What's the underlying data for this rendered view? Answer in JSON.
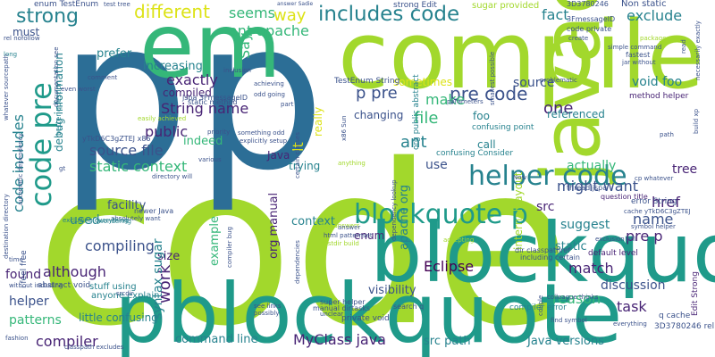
{
  "colors": {
    "background": "#ffffff",
    "palette": {
      "lime": "#a2d82c",
      "teal": "#1f9a8a",
      "green": "#35b779",
      "blue": "#2c6e96",
      "navy": "#3b528b",
      "purple": "#482475",
      "darkpurple": "#440154",
      "yellow": "#dde318",
      "cyan": "#26828e"
    }
  },
  "words": [
    {
      "text": "code",
      "color": "lime"
    },
    {
      "text": "compile",
      "color": "lime"
    },
    {
      "text": "p",
      "color": "blue"
    },
    {
      "text": "p",
      "color": "blue"
    },
    {
      "text": "blockquote",
      "color": "teal"
    },
    {
      "text": "pblockquote",
      "color": "teal"
    },
    {
      "text": "em",
      "color": "green"
    },
    {
      "text": "javac",
      "color": "lime"
    },
    {
      "text": "code pre",
      "color": "teal"
    },
    {
      "text": "includes code",
      "color": "cyan"
    },
    {
      "text": "strong",
      "color": "cyan"
    },
    {
      "text": "blockquote p",
      "color": "teal"
    },
    {
      "text": "helper code",
      "color": "cyan"
    },
    {
      "text": "different",
      "color": "yellow"
    },
    {
      "text": "seems",
      "color": "green"
    },
    {
      "text": "way",
      "color": "yellow"
    },
    {
      "text": "fact",
      "color": "cyan"
    },
    {
      "text": "exclude",
      "color": "cyan"
    },
    {
      "text": "ant apache",
      "color": "green"
    },
    {
      "text": "Say",
      "color": "green"
    },
    {
      "text": "prefer",
      "color": "cyan"
    },
    {
      "text": "increasing",
      "color": "cyan"
    },
    {
      "text": "exactly",
      "color": "purple"
    },
    {
      "text": "String name",
      "color": "purple"
    },
    {
      "text": "compiled",
      "color": "purple"
    },
    {
      "text": "p pre",
      "color": "navy"
    },
    {
      "text": "pre code",
      "color": "navy"
    },
    {
      "text": "one",
      "color": "purple"
    },
    {
      "text": "source",
      "color": "navy"
    },
    {
      "text": "void foo",
      "color": "cyan"
    },
    {
      "text": "make",
      "color": "green"
    },
    {
      "text": "file",
      "color": "green"
    },
    {
      "text": "changing",
      "color": "navy"
    },
    {
      "text": "foo",
      "color": "cyan"
    },
    {
      "text": "referenced",
      "color": "cyan"
    },
    {
      "text": "code includes",
      "color": "cyan"
    },
    {
      "text": "debug information",
      "color": "cyan"
    },
    {
      "text": "public",
      "color": "purple"
    },
    {
      "text": "indeed",
      "color": "green"
    },
    {
      "text": "source file",
      "color": "navy"
    },
    {
      "text": "static context",
      "color": "green"
    },
    {
      "text": "Java",
      "color": "purple"
    },
    {
      "text": "trying",
      "color": "cyan"
    },
    {
      "text": "ant",
      "color": "cyan"
    },
    {
      "text": "call",
      "color": "cyan"
    },
    {
      "text": "use",
      "color": "navy"
    },
    {
      "text": "actually",
      "color": "green"
    },
    {
      "text": "tree",
      "color": "purple"
    },
    {
      "text": "href",
      "color": "purple"
    },
    {
      "text": "might want",
      "color": "navy"
    },
    {
      "text": "src",
      "color": "purple"
    },
    {
      "text": "name",
      "color": "navy"
    },
    {
      "text": "suggest",
      "color": "cyan"
    },
    {
      "text": "facility",
      "color": "navy"
    },
    {
      "text": "used",
      "color": "cyan"
    },
    {
      "text": "compiling",
      "color": "navy"
    },
    {
      "text": "size",
      "color": "purple"
    },
    {
      "text": "example",
      "color": "green"
    },
    {
      "text": "org manual",
      "color": "purple"
    },
    {
      "text": "context",
      "color": "cyan"
    },
    {
      "text": "apache org",
      "color": "cyan"
    },
    {
      "text": "Eclipse",
      "color": "darkpurple"
    },
    {
      "text": "pre p",
      "color": "purple"
    },
    {
      "text": "found",
      "color": "purple"
    },
    {
      "text": "helper",
      "color": "navy"
    },
    {
      "text": "although",
      "color": "purple"
    },
    {
      "text": "patterns",
      "color": "green"
    },
    {
      "text": "compiler",
      "color": "purple"
    },
    {
      "text": "work",
      "color": "purple"
    },
    {
      "text": "syntax sugar",
      "color": "cyan"
    },
    {
      "text": "visibility",
      "color": "navy"
    },
    {
      "text": "match",
      "color": "purple"
    },
    {
      "text": "reason",
      "color": "green"
    },
    {
      "text": "discussion",
      "color": "navy"
    },
    {
      "text": "task",
      "color": "purple"
    },
    {
      "text": "command line",
      "color": "cyan"
    },
    {
      "text": "MyClass java",
      "color": "purple"
    },
    {
      "text": "src path",
      "color": "cyan"
    },
    {
      "text": "Java versions",
      "color": "cyan"
    },
    {
      "text": "must",
      "color": "navy"
    },
    {
      "text": "enum",
      "color": "purple"
    },
    {
      "text": "static",
      "color": "cyan"
    },
    {
      "text": "little confusing",
      "color": "cyan"
    },
    {
      "text": "stuff using",
      "color": "cyan"
    },
    {
      "text": "anyone explain",
      "color": "cyan"
    },
    {
      "text": "sometimes",
      "color": "yellow"
    },
    {
      "text": "really",
      "color": "yellow"
    },
    {
      "text": "lt",
      "color": "yellow"
    },
    {
      "text": "internal layout",
      "color": "lime"
    },
    {
      "text": "enum TestEnum",
      "color": "navy"
    },
    {
      "text": "test tree",
      "color": "navy"
    },
    {
      "text": "strong Edit",
      "color": "navy"
    },
    {
      "text": "sugar provided",
      "color": "lime"
    },
    {
      "text": "3D3780246",
      "color": "navy"
    },
    {
      "text": "Non static",
      "color": "navy"
    },
    {
      "text": "TestEnum String",
      "color": "navy"
    },
    {
      "text": "static method",
      "color": "navy"
    },
    {
      "text": "confusing point",
      "color": "cyan"
    },
    {
      "text": "confusing Consider",
      "color": "cyan"
    },
    {
      "text": "org public abstract",
      "color": "cyan"
    },
    {
      "text": "thread jspa",
      "color": "navy"
    },
    {
      "text": "error String",
      "color": "navy"
    },
    {
      "text": "cache yTkD6C3gZTEJ",
      "color": "navy"
    },
    {
      "text": "default level",
      "color": "purple"
    },
    {
      "text": "method helper",
      "color": "purple"
    },
    {
      "text": "Edit Strong",
      "color": "purple"
    },
    {
      "text": "q cache",
      "color": "navy"
    },
    {
      "text": "3D3780246 rel",
      "color": "navy"
    },
    {
      "text": "abstract void",
      "color": "navy"
    },
    {
      "text": "i feel free",
      "color": "navy"
    },
    {
      "text": "private void",
      "color": "navy"
    },
    {
      "text": "search q",
      "color": "navy"
    },
    {
      "text": "compiler error",
      "color": "cyan"
    },
    {
      "text": "super helper",
      "color": "navy"
    },
    {
      "text": "dir classpathref",
      "color": "navy"
    },
    {
      "text": "including certain",
      "color": "navy"
    },
    {
      "text": "jspa 3FmessageID",
      "color": "navy"
    },
    {
      "text": "yTkD6C3gZTEJ x86",
      "color": "navy"
    },
    {
      "text": "3FmessageID",
      "color": "navy"
    },
    {
      "text": "code private",
      "color": "navy"
    },
    {
      "text": "fastest",
      "color": "navy"
    },
    {
      "text": "jar without",
      "color": "navy"
    },
    {
      "text": "simple command",
      "color": "navy"
    },
    {
      "text": "create",
      "color": "navy"
    },
    {
      "text": "answer Sadie",
      "color": "navy"
    },
    {
      "text": "rel nofollow",
      "color": "navy"
    },
    {
      "text": "something odd",
      "color": "navy"
    },
    {
      "text": "explicitly setup",
      "color": "navy"
    },
    {
      "text": "odd going",
      "color": "navy"
    },
    {
      "text": "achieving",
      "color": "navy"
    },
    {
      "text": "even worst",
      "color": "navy"
    },
    {
      "text": "comment",
      "color": "navy"
    },
    {
      "text": "directory will",
      "color": "navy"
    },
    {
      "text": "newer Java",
      "color": "navy"
    },
    {
      "text": "absolutely want",
      "color": "navy"
    },
    {
      "text": "wondering",
      "color": "cyan"
    },
    {
      "text": "excluding everything",
      "color": "cyan"
    },
    {
      "text": "without including",
      "color": "navy"
    },
    {
      "text": "time",
      "color": "navy"
    },
    {
      "text": "real answers",
      "color": "lime"
    },
    {
      "text": "accepting",
      "color": "lime"
    },
    {
      "text": "answer",
      "color": "navy"
    },
    {
      "text": "html patternset",
      "color": "navy"
    },
    {
      "text": "manual dirtasks",
      "color": "navy"
    },
    {
      "text": "unclear",
      "color": "navy"
    },
    {
      "text": "see links",
      "color": "navy"
    },
    {
      "text": "possibly",
      "color": "navy"
    },
    {
      "text": "colleague thinks",
      "color": "navy"
    },
    {
      "text": "find symbol",
      "color": "navy"
    },
    {
      "text": "question title",
      "color": "purple"
    },
    {
      "text": "symbol helper",
      "color": "navy"
    },
    {
      "text": "cp whatever",
      "color": "navy"
    },
    {
      "text": "exclusion",
      "color": "navy"
    },
    {
      "text": "will",
      "color": "navy"
    },
    {
      "text": "everything",
      "color": "navy"
    },
    {
      "text": "couple",
      "color": "navy"
    },
    {
      "text": "anything",
      "color": "lime"
    },
    {
      "text": "various",
      "color": "navy"
    },
    {
      "text": "gt",
      "color": "navy"
    },
    {
      "text": "part",
      "color": "navy"
    },
    {
      "text": "inclusion",
      "color": "navy"
    },
    {
      "text": "priority",
      "color": "navy"
    },
    {
      "text": "better question",
      "color": "cyan"
    },
    {
      "text": "easily achieved",
      "color": "lime"
    },
    {
      "text": "parameters",
      "color": "navy"
    },
    {
      "text": "problematic",
      "color": "navy"
    },
    {
      "text": "long",
      "color": "cyan"
    },
    {
      "text": "path",
      "color": "navy"
    },
    {
      "text": "build xp",
      "color": "navy"
    },
    {
      "text": "read",
      "color": "navy"
    },
    {
      "text": "Now",
      "color": "navy"
    },
    {
      "text": "destdir build",
      "color": "lime"
    },
    {
      "text": "classpath excludes",
      "color": "navy"
    },
    {
      "text": "srcdir",
      "color": "navy"
    },
    {
      "text": "fashion",
      "color": "navy"
    },
    {
      "text": "whatever sourcepath",
      "color": "navy"
    },
    {
      "text": "destination directory",
      "color": "navy"
    },
    {
      "text": "automatic dependency",
      "color": "navy"
    },
    {
      "text": "documentation see",
      "color": "navy"
    },
    {
      "text": "smallest possible",
      "color": "navy"
    },
    {
      "text": "dependency lookup",
      "color": "navy"
    },
    {
      "text": "dependencies",
      "color": "navy"
    },
    {
      "text": "x86 Sun",
      "color": "navy"
    },
    {
      "text": "certain classes",
      "color": "navy"
    },
    {
      "text": "compiler bug",
      "color": "navy"
    },
    {
      "text": "package",
      "color": "lime"
    },
    {
      "text": "necessarily exactly",
      "color": "navy"
    }
  ]
}
